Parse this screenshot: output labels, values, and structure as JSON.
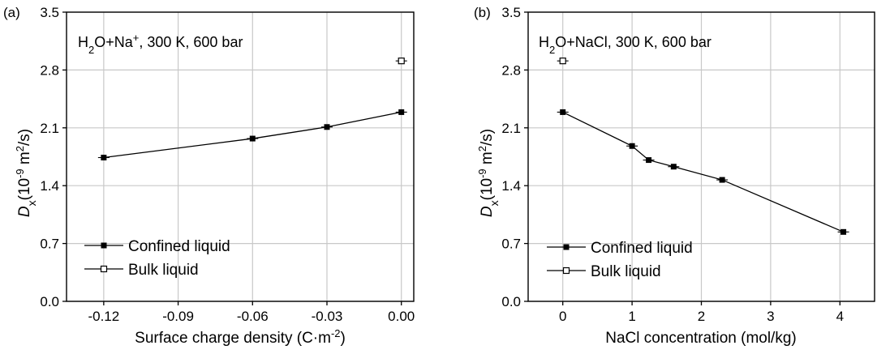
{
  "chart_data": [
    {
      "type": "line",
      "panel_label": "(a)",
      "annotation": "H₂O+Na⁺, 300 K, 600 bar",
      "annotation_parts": {
        "pre": "H",
        "sub": "2",
        "mid": "O+Na",
        "sup": "+",
        "post": ", 300 K, 600 bar"
      },
      "xlabel": "Surface charge density (C·m",
      "xlabel_sup": "-2",
      "xlabel_post": ")",
      "ylabel_main": "D",
      "ylabel_sub": "x",
      "ylabel_unit_pre": "(10",
      "ylabel_unit_sup": "-9",
      "ylabel_unit_mid": " m",
      "ylabel_unit_sup2": "2",
      "ylabel_unit_post": "/s)",
      "xlim": [
        -0.135,
        0.005
      ],
      "ylim": [
        0,
        3.5
      ],
      "xticks": [
        -0.12,
        -0.09,
        -0.06,
        -0.03,
        0.0
      ],
      "xtick_labels": [
        "-0.12",
        "-0.09",
        "-0.06",
        "-0.03",
        "0.00"
      ],
      "yticks": [
        0,
        0.7,
        1.4,
        2.1,
        2.8,
        3.5
      ],
      "ytick_labels": [
        "0.0",
        "0.7",
        "1.4",
        "2.1",
        "2.8",
        "3.5"
      ],
      "grid": true,
      "legend_position": "bottom-left",
      "series": [
        {
          "name": "Confined liquid",
          "marker": "filled-square",
          "connected": true,
          "x": [
            -0.12,
            -0.06,
            -0.03,
            0.0
          ],
          "y": [
            1.74,
            1.97,
            2.11,
            2.29
          ]
        },
        {
          "name": "Bulk liquid",
          "marker": "open-square",
          "connected": false,
          "x": [
            0.0
          ],
          "y": [
            2.91
          ]
        }
      ]
    },
    {
      "type": "line",
      "panel_label": "(b)",
      "annotation": "H₂O+NaCl, 300 K, 600 bar",
      "annotation_parts": {
        "pre": "H",
        "sub": "2",
        "mid": "O+NaCl, 300 K, 600 bar",
        "sup": "",
        "post": ""
      },
      "xlabel": "NaCl concentration (mol/kg)",
      "xlabel_sup": "",
      "xlabel_post": "",
      "ylabel_main": "D",
      "ylabel_sub": "x",
      "ylabel_unit_pre": "(10",
      "ylabel_unit_sup": "-9",
      "ylabel_unit_mid": " m",
      "ylabel_unit_sup2": "2",
      "ylabel_unit_post": "/s)",
      "xlim": [
        -0.5,
        4.5
      ],
      "ylim": [
        0,
        3.5
      ],
      "xticks": [
        0,
        1,
        2,
        3,
        4
      ],
      "xtick_labels": [
        "0",
        "1",
        "2",
        "3",
        "4"
      ],
      "yticks": [
        0,
        0.7,
        1.4,
        2.1,
        2.8,
        3.5
      ],
      "ytick_labels": [
        "0.0",
        "0.7",
        "1.4",
        "2.1",
        "2.8",
        "3.5"
      ],
      "grid": true,
      "legend_position": "bottom-left",
      "series": [
        {
          "name": "Confined liquid",
          "marker": "filled-square",
          "connected": true,
          "x": [
            0,
            1.0,
            1.24,
            1.6,
            2.3,
            4.05
          ],
          "y": [
            2.29,
            1.88,
            1.71,
            1.63,
            1.47,
            0.84
          ]
        },
        {
          "name": "Bulk liquid",
          "marker": "open-square",
          "connected": false,
          "x": [
            0
          ],
          "y": [
            2.91
          ]
        }
      ]
    }
  ]
}
